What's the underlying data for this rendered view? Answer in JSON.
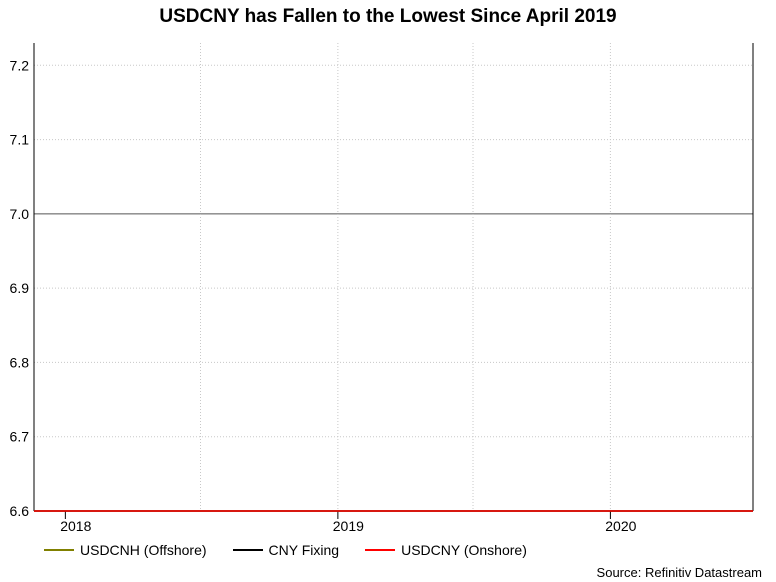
{
  "chart_data": {
    "type": "line",
    "title": "USDCNY has Fallen to the Lowest Since April 2019",
    "xlabel": "",
    "ylabel": "",
    "x_tick_labels": [
      "2018",
      "2019",
      "2020"
    ],
    "y_ticks": [
      6.6,
      6.7,
      6.8,
      6.9,
      7.0,
      7.1,
      7.2
    ],
    "ylim": [
      6.6,
      7.23
    ],
    "xlim": [
      "2017-11-20",
      "2020-07-10"
    ],
    "grid": true,
    "reference_line": 7.0,
    "legend_position": "bottom",
    "x": [
      "2017-11-20",
      "2017-12-01",
      "2017-12-15",
      "2018-01-01",
      "2018-01-15",
      "2018-02-01",
      "2018-02-15",
      "2018-03-01",
      "2018-03-15",
      "2018-04-01",
      "2018-04-15",
      "2018-05-01",
      "2018-05-15",
      "2018-06-01",
      "2018-06-15",
      "2018-07-01",
      "2018-07-15",
      "2018-08-01",
      "2018-08-15",
      "2018-09-01",
      "2018-09-15",
      "2018-10-01",
      "2018-10-15",
      "2018-11-01",
      "2018-11-15",
      "2018-12-01",
      "2018-12-15",
      "2019-01-01",
      "2019-01-15",
      "2019-02-01",
      "2019-02-15",
      "2019-03-01",
      "2019-03-15",
      "2019-04-01",
      "2019-04-15",
      "2019-05-01",
      "2019-05-10",
      "2019-05-20",
      "2019-06-01",
      "2019-06-15",
      "2019-07-01",
      "2019-07-15",
      "2019-08-01",
      "2019-08-08",
      "2019-08-20",
      "2019-09-01",
      "2019-09-15",
      "2019-10-01",
      "2019-10-15",
      "2019-11-01",
      "2019-11-15",
      "2019-12-01",
      "2019-12-15",
      "2020-01-01",
      "2020-01-15",
      "2020-02-01",
      "2020-02-15",
      "2020-03-01",
      "2020-03-15",
      "2020-04-01",
      "2020-04-15",
      "2020-05-01",
      "2020-05-15",
      "2020-06-01",
      "2020-06-15",
      "2020-07-01",
      "2020-07-10"
    ],
    "series": [
      {
        "name": "USDCNH (Offshore)",
        "color": "#808000",
        "values": [
          6.6,
          6.6,
          6.6,
          6.6,
          6.6,
          6.6,
          6.6,
          6.6,
          6.6,
          6.6,
          6.6,
          6.6,
          6.6,
          6.6,
          6.6,
          6.6,
          6.6,
          6.6,
          6.6,
          6.6,
          6.6,
          6.6,
          6.6,
          6.6,
          6.6,
          6.6,
          6.6,
          6.6,
          6.6,
          6.6,
          6.6,
          6.6,
          6.6,
          6.6,
          6.6,
          6.6,
          6.6,
          6.6,
          6.6,
          6.6,
          6.6,
          6.6,
          6.6,
          6.6,
          6.6,
          6.6,
          6.6,
          6.6,
          6.6,
          6.6,
          6.6,
          6.6,
          6.6,
          6.6,
          6.6,
          6.6,
          6.6,
          6.6,
          6.6,
          6.6,
          6.6,
          6.6,
          6.6,
          6.6,
          6.6,
          6.6,
          6.6
        ]
      },
      {
        "name": "CNY Fixing",
        "color": "#000000",
        "values": [
          6.6,
          6.6,
          6.6,
          6.6,
          6.6,
          6.6,
          6.6,
          6.6,
          6.6,
          6.6,
          6.6,
          6.6,
          6.6,
          6.6,
          6.6,
          6.6,
          6.6,
          6.6,
          6.6,
          6.6,
          6.6,
          6.6,
          6.6,
          6.6,
          6.6,
          6.6,
          6.6,
          6.6,
          6.6,
          6.6,
          6.6,
          6.6,
          6.6,
          6.6,
          6.6,
          6.6,
          6.6,
          6.6,
          6.6,
          6.6,
          6.6,
          6.6,
          6.6,
          6.6,
          6.6,
          6.6,
          6.6,
          6.6,
          6.6,
          6.6,
          6.6,
          6.6,
          6.6,
          6.6,
          6.6,
          6.6,
          6.6,
          6.6,
          6.6,
          6.6,
          6.6,
          6.6,
          6.6,
          6.6,
          6.6,
          6.6,
          6.6
        ]
      },
      {
        "name": "USDCNY (Onshore)",
        "color": "#ff0000",
        "values": [
          6.6,
          6.6,
          6.6,
          6.6,
          6.6,
          6.6,
          6.6,
          6.6,
          6.6,
          6.6,
          6.6,
          6.6,
          6.6,
          6.6,
          6.6,
          6.6,
          6.6,
          6.6,
          6.6,
          6.6,
          6.6,
          6.6,
          6.6,
          6.6,
          6.6,
          6.6,
          6.6,
          6.6,
          6.6,
          6.6,
          6.6,
          6.6,
          6.6,
          6.6,
          6.6,
          6.6,
          6.6,
          6.6,
          6.6,
          6.6,
          6.6,
          6.6,
          6.6,
          6.6,
          6.6,
          6.6,
          6.6,
          6.6,
          6.6,
          6.6,
          6.6,
          6.6,
          6.6,
          6.6,
          6.6,
          6.6,
          6.6,
          6.6,
          6.6,
          6.6,
          6.6,
          6.6,
          6.6,
          6.6,
          6.6,
          6.6,
          6.6
        ]
      }
    ]
  },
  "legend": {
    "items": [
      {
        "label": "USDCNH (Offshore)",
        "color": "#808000"
      },
      {
        "label": "CNY Fixing",
        "color": "#000000"
      },
      {
        "label": "USDCNY (Onshore)",
        "color": "#ff0000"
      }
    ]
  },
  "source": "Source: Refinitiv Datastream"
}
